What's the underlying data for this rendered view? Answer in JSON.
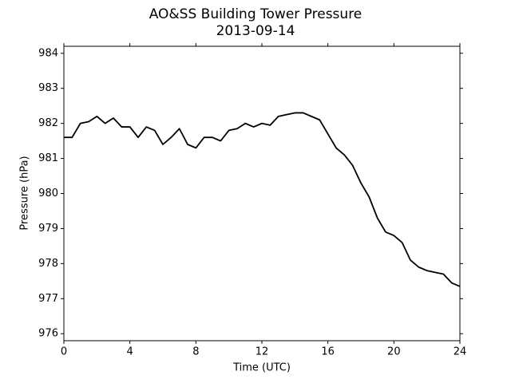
{
  "chart_data": {
    "type": "line",
    "title": "AO&SS Building Tower Pressure",
    "subtitle": "2013-09-14",
    "x_label": "Time (UTC)",
    "y_label": "Pressure (hPa)",
    "x": [
      0,
      0.5,
      1,
      1.5,
      2,
      2.5,
      3,
      3.5,
      4,
      4.5,
      5,
      5.5,
      6,
      6.5,
      7,
      7.5,
      8,
      8.5,
      9,
      9.5,
      10,
      10.5,
      11,
      11.5,
      12,
      12.5,
      13,
      13.5,
      14,
      14.5,
      15,
      15.5,
      16,
      16.5,
      17,
      17.5,
      18,
      18.5,
      19,
      19.5,
      20,
      20.5,
      21,
      21.5,
      22,
      22.5,
      23,
      23.5,
      24
    ],
    "series": [
      {
        "color": "#000000",
        "values": [
          981.6,
          981.6,
          982.0,
          982.05,
          982.2,
          982.0,
          982.15,
          981.9,
          981.9,
          981.6,
          981.9,
          981.8,
          981.4,
          981.6,
          981.85,
          981.4,
          981.3,
          981.6,
          981.6,
          981.5,
          981.8,
          981.85,
          982.0,
          981.9,
          982.0,
          981.95,
          982.2,
          982.25,
          982.3,
          982.3,
          982.2,
          982.1,
          981.7,
          981.3,
          981.1,
          980.8,
          980.3,
          979.9,
          979.3,
          978.9,
          978.8,
          978.6,
          978.1,
          977.9,
          977.8,
          977.75,
          977.7,
          977.45,
          977.35
        ]
      }
    ],
    "xlim": [
      0,
      24
    ],
    "xticks": [
      0,
      4,
      8,
      12,
      16,
      20,
      24
    ],
    "ylim": [
      975.8,
      984.2
    ],
    "yticks": [
      976,
      977,
      978,
      979,
      980,
      981,
      982,
      983,
      984
    ],
    "grid": false
  }
}
